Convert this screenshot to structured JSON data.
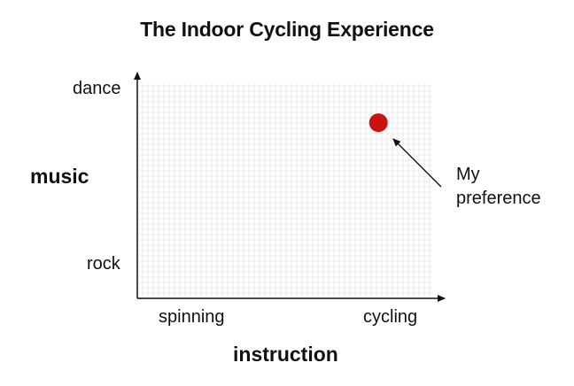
{
  "title": "The Indoor Cycling Experience",
  "y_axis": {
    "title": "music",
    "top_label": "dance",
    "bottom_label": "rock"
  },
  "x_axis": {
    "title": "instruction",
    "left_label": "spinning",
    "right_label": "cycling"
  },
  "point": {
    "x": 0.82,
    "y": 0.82,
    "color": "#cc1111"
  },
  "annotation": {
    "line1": "My",
    "line2": "preference"
  },
  "colors": {
    "grid": "#dcdcdc",
    "axis": "#111111"
  }
}
